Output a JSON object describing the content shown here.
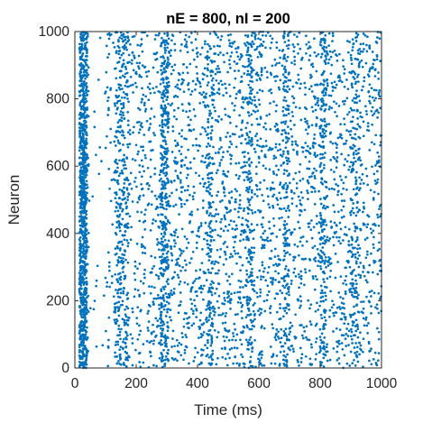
{
  "chart_data": {
    "type": "scatter",
    "title": "nE = 800, nI = 200",
    "xlabel": "Time (ms)",
    "ylabel": "Neuron",
    "xlim": [
      0,
      1000
    ],
    "ylim": [
      0,
      1000
    ],
    "xticks": [
      0,
      200,
      400,
      600,
      800,
      1000
    ],
    "yticks": [
      0,
      200,
      400,
      600,
      800,
      1000
    ],
    "xtick_labels": [
      "0",
      "200",
      "400",
      "600",
      "800",
      "1000"
    ],
    "ytick_labels": [
      "0",
      "200",
      "400",
      "600",
      "800",
      "1000"
    ],
    "grid": false,
    "legend": "none",
    "marker_color": "#0072BD",
    "marker_shape": "dot",
    "population": {
      "excitatory": 800,
      "inhibitory": 200,
      "total": 1000
    },
    "duration_ms": 1000,
    "synchronous_bands_ms": [
      {
        "start": 15,
        "end": 40,
        "strength": "strong"
      },
      {
        "start": 130,
        "end": 175,
        "strength": "medium"
      },
      {
        "start": 280,
        "end": 305,
        "strength": "medium"
      },
      {
        "start": 430,
        "end": 450,
        "strength": "weak"
      },
      {
        "start": 560,
        "end": 580,
        "strength": "weak"
      },
      {
        "start": 680,
        "end": 700,
        "strength": "weak"
      },
      {
        "start": 800,
        "end": 820,
        "strength": "weak"
      },
      {
        "start": 900,
        "end": 930,
        "strength": "weak"
      }
    ],
    "quiet_interval_ms": [
      45,
      100
    ]
  }
}
